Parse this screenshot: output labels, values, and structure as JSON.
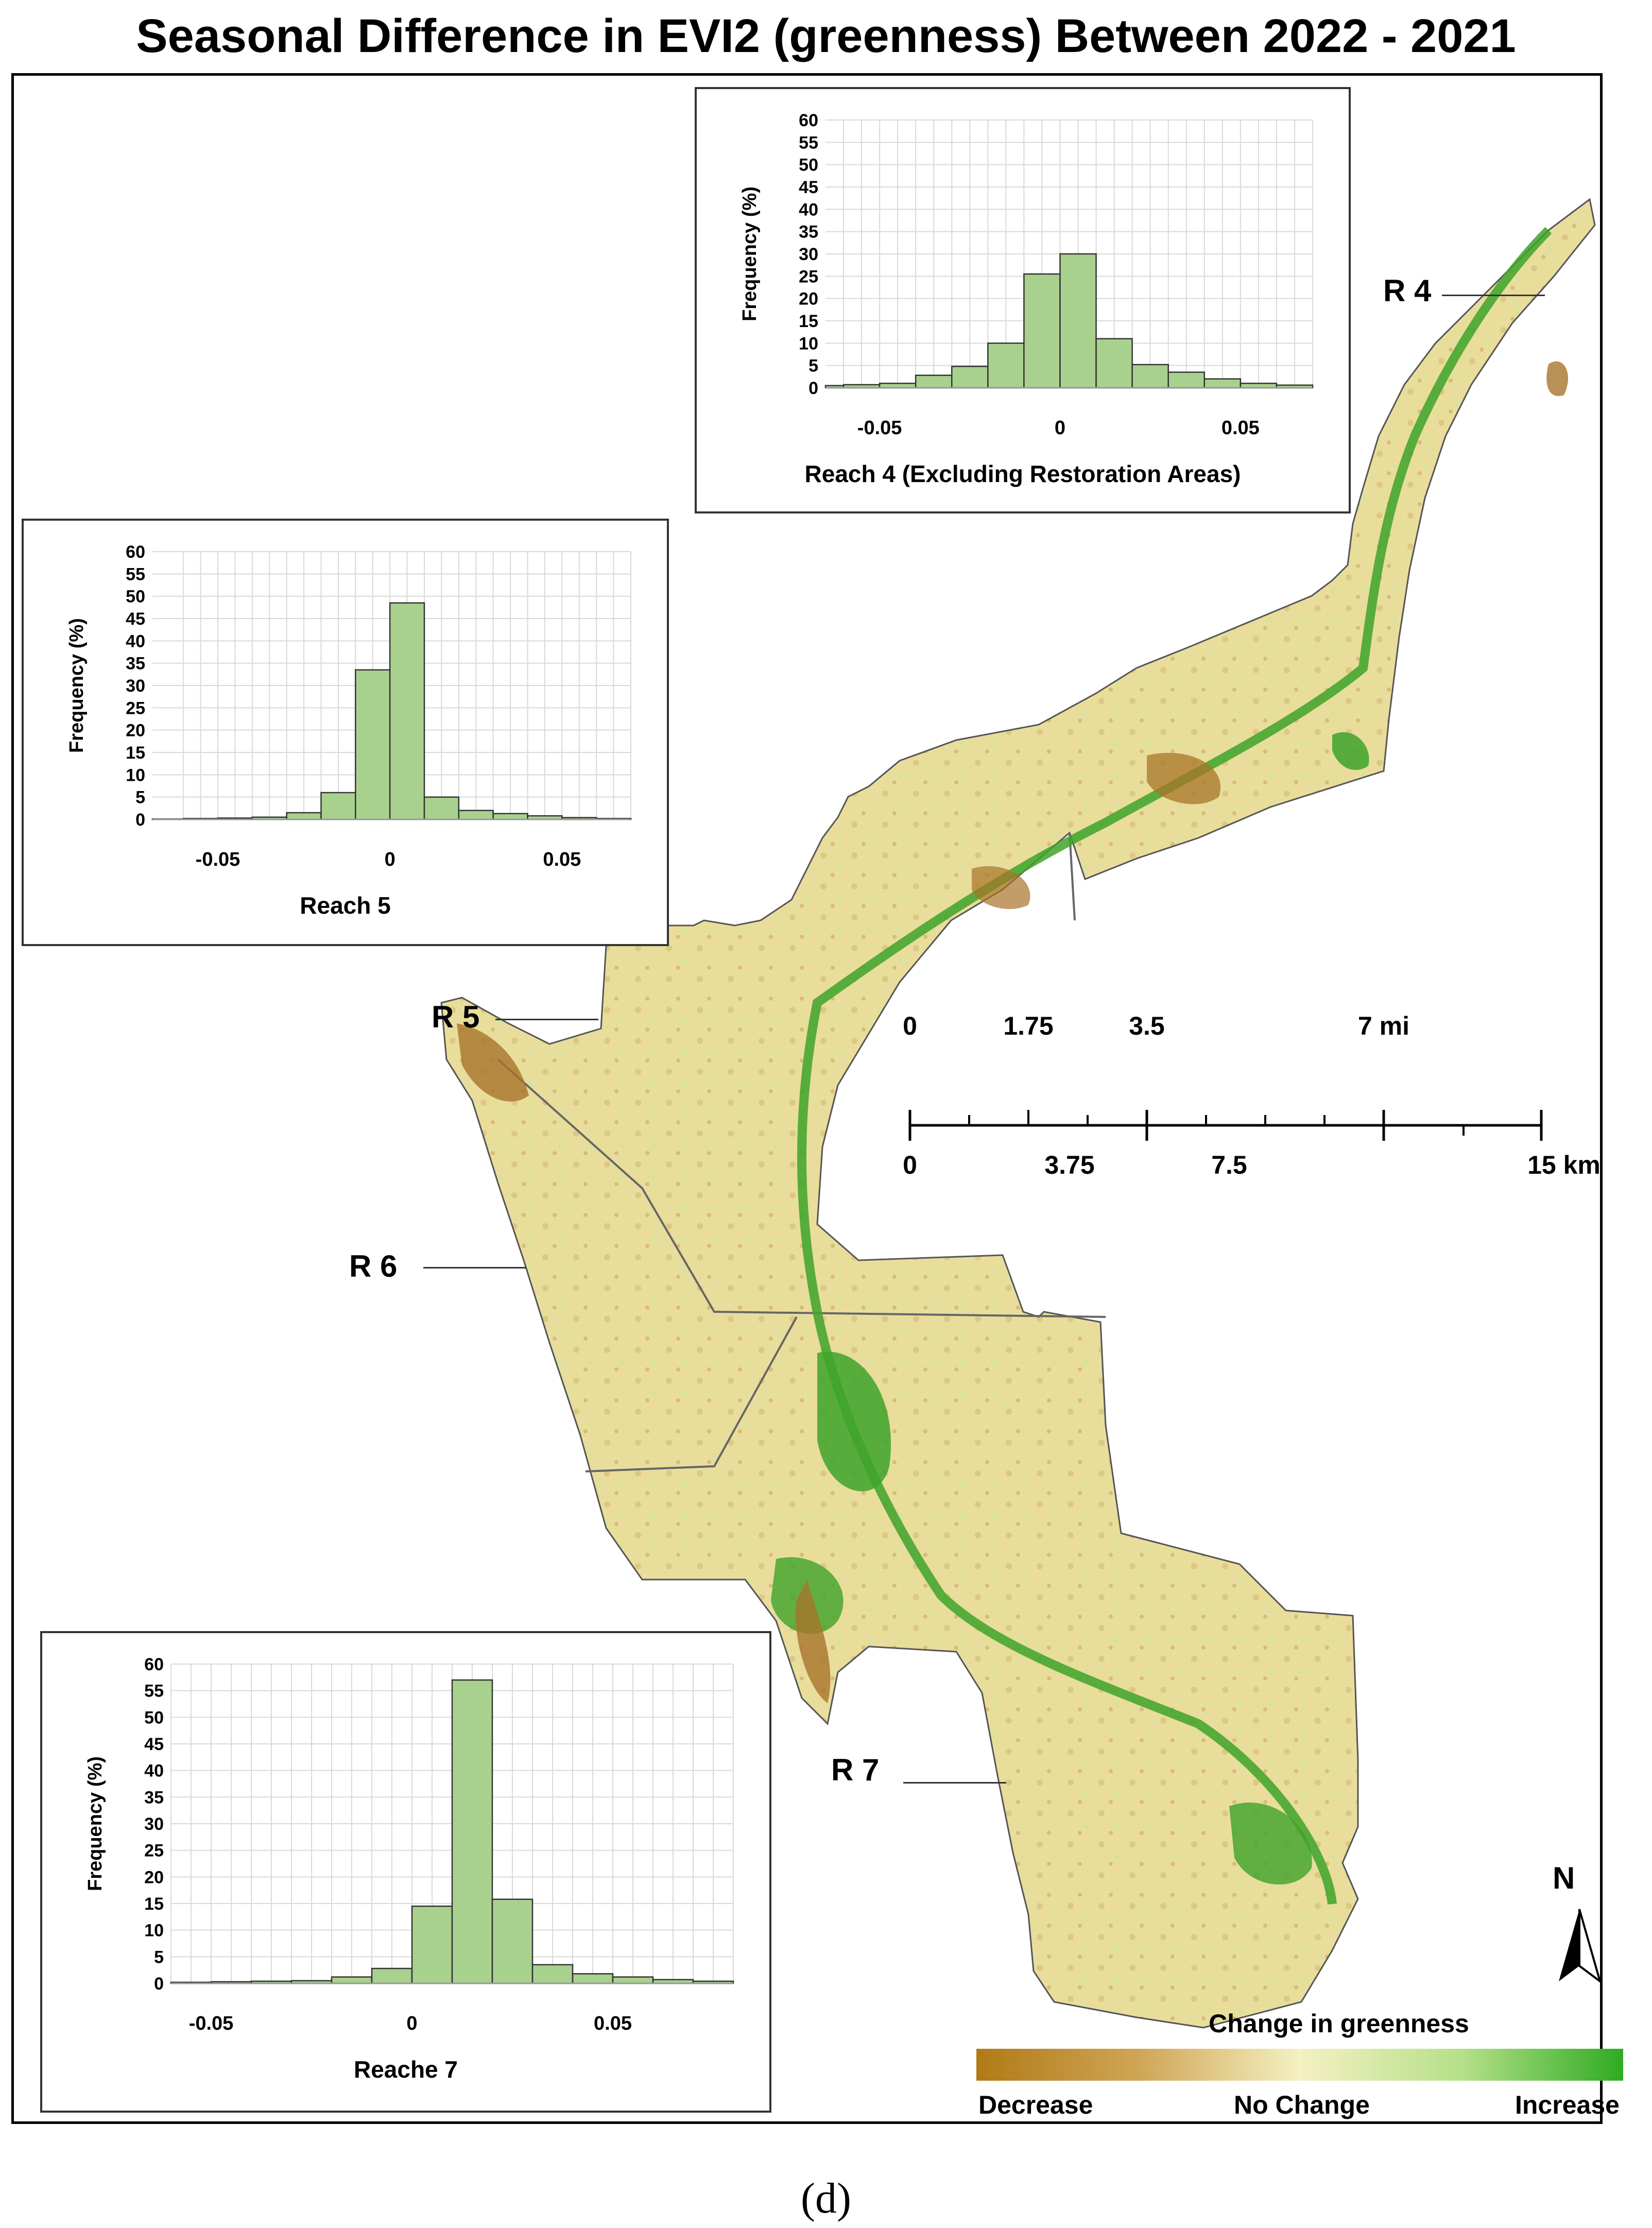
{
  "title": "Seasonal Difference in EVI2 (greenness) Between 2022 - 2021",
  "panel_label": "(d)",
  "reach_labels": {
    "r4": "R 4",
    "r5": "R 5",
    "r6": "R 6",
    "r7": "R 7"
  },
  "scale_bar": {
    "mi_labels": [
      "0",
      "1.75",
      "3.5",
      "7 mi"
    ],
    "km_labels": [
      "0",
      "3.75",
      "7.5",
      "15 km"
    ]
  },
  "legend": {
    "title": "Change in greenness",
    "low": "Decrease",
    "mid": "No Change",
    "high": "Increase",
    "colors": [
      "#b07a16",
      "#f4f1c2",
      "#2eab22"
    ]
  },
  "north_arrow": {
    "label": "N",
    "icon": "north-arrow-icon"
  },
  "colors": {
    "bar_fill": "#a9d18e",
    "bar_stroke": "#333333",
    "grid": "#d9d9d9",
    "map_neutral": "#e9dd9c",
    "map_green": "#3ea32a",
    "map_brown": "#a8742a"
  },
  "chart_data": [
    {
      "type": "bar",
      "title": "Reach 4 (Excluding Restoration Areas)",
      "ylabel": "Frequency (%)",
      "xlabel": "",
      "ylim": [
        0,
        60
      ],
      "yticks": [
        0,
        5,
        10,
        15,
        20,
        25,
        30,
        35,
        40,
        45,
        50,
        55,
        60
      ],
      "xticks": [
        "-0.05",
        "0",
        "0.05"
      ],
      "xtick_values": [
        -0.05,
        0,
        0.05
      ],
      "xlim": [
        -0.065,
        0.07
      ],
      "bin_width": 0.01,
      "bin_starts": [
        -0.07,
        -0.06,
        -0.05,
        -0.04,
        -0.03,
        -0.02,
        -0.01,
        0.0,
        0.01,
        0.02,
        0.03,
        0.04,
        0.05,
        0.06
      ],
      "values": [
        0.5,
        0.7,
        1.0,
        2.8,
        4.8,
        10.0,
        25.5,
        30.0,
        11.0,
        5.2,
        3.5,
        2.0,
        1.0,
        0.6
      ]
    },
    {
      "type": "bar",
      "title": "Reach 5",
      "ylabel": "Frequency (%)",
      "xlabel": "",
      "ylim": [
        0,
        60
      ],
      "yticks": [
        0,
        5,
        10,
        15,
        20,
        25,
        30,
        35,
        40,
        45,
        50,
        55,
        60
      ],
      "xticks": [
        "-0.05",
        "0",
        "0.05"
      ],
      "xtick_values": [
        -0.05,
        0,
        0.05
      ],
      "xlim": [
        -0.069,
        0.07
      ],
      "bin_width": 0.01,
      "bin_starts": [
        -0.07,
        -0.06,
        -0.05,
        -0.04,
        -0.03,
        -0.02,
        -0.01,
        0.0,
        0.01,
        0.02,
        0.03,
        0.04,
        0.05,
        0.06
      ],
      "values": [
        0.1,
        0.2,
        0.3,
        0.5,
        1.5,
        6.0,
        33.5,
        48.5,
        5.0,
        2.0,
        1.3,
        0.8,
        0.4,
        0.2
      ]
    },
    {
      "type": "bar",
      "title": "Reache 7",
      "ylabel": "Frequency (%)",
      "xlabel": "",
      "ylim": [
        0,
        60
      ],
      "yticks": [
        0,
        5,
        10,
        15,
        20,
        25,
        30,
        35,
        40,
        45,
        50,
        55,
        60
      ],
      "xticks": [
        "-0.05",
        "0",
        "0.05"
      ],
      "xtick_values": [
        -0.05,
        0,
        0.05
      ],
      "xlim": [
        -0.06,
        0.08
      ],
      "bin_width": 0.01,
      "bin_starts": [
        -0.06,
        -0.05,
        -0.04,
        -0.03,
        -0.02,
        -0.01,
        0.0,
        0.01,
        0.02,
        0.03,
        0.04,
        0.05,
        0.06,
        0.07
      ],
      "values": [
        0.2,
        0.3,
        0.4,
        0.5,
        1.2,
        2.8,
        14.5,
        57.0,
        15.8,
        3.5,
        1.8,
        1.2,
        0.7,
        0.4
      ]
    }
  ]
}
